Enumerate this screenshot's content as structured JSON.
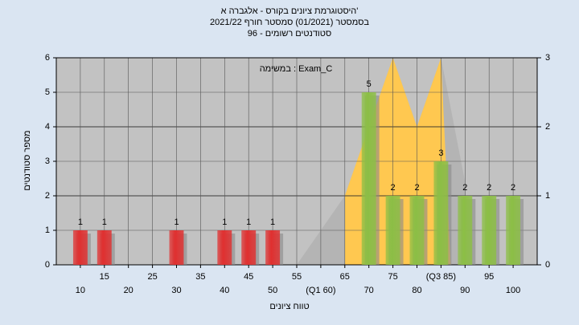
{
  "chart_data": {
    "type": "bar",
    "title": "היסטוגרמת ציונים בקורס - אלגברה א'",
    "subtitle": "בסמסטר (01/2021) סמסטר חורף 2021/22",
    "subtitle2": "סטודנטים רשומים - 96",
    "annotation": "במשימה : Exam_C",
    "xlabel": "טווח ציונים",
    "ylabel": "מספר סטודנטים",
    "xlim": [
      5,
      105
    ],
    "xticks": [
      10,
      15,
      20,
      25,
      30,
      35,
      40,
      45,
      50,
      55,
      {
        "value": 60,
        "label": "(Q1 60)"
      },
      65,
      70,
      75,
      80,
      {
        "value": 85,
        "label": "(Q3 85)"
      },
      90,
      95,
      100
    ],
    "ylim": [
      0,
      6
    ],
    "yticks": [
      0,
      1,
      2,
      3,
      4,
      5,
      6
    ],
    "y2lim": [
      0,
      3
    ],
    "y2ticks": [
      0,
      1,
      2,
      3
    ],
    "grid": true,
    "series": [
      {
        "color": "#e03030",
        "x": [
          10,
          15,
          30,
          40,
          45,
          50
        ],
        "values": [
          1,
          1,
          1,
          1,
          1,
          1
        ]
      },
      {
        "color": "#8cbf45",
        "x": [
          70,
          75,
          80,
          85,
          90,
          95,
          100
        ],
        "values": [
          5,
          2,
          2,
          3,
          2,
          2,
          2
        ]
      }
    ],
    "areas": [
      {
        "color": "#b4b4b4",
        "axis": "y2",
        "x": [
          55,
          65,
          75,
          80,
          85,
          90
        ],
        "values": [
          0,
          1,
          3,
          2,
          3,
          1.2
        ]
      },
      {
        "color": "#ffc850",
        "axis": "y2",
        "x": [
          65,
          65,
          75,
          80,
          85,
          87
        ],
        "values": [
          0,
          1,
          3,
          2,
          3,
          0
        ]
      }
    ]
  }
}
